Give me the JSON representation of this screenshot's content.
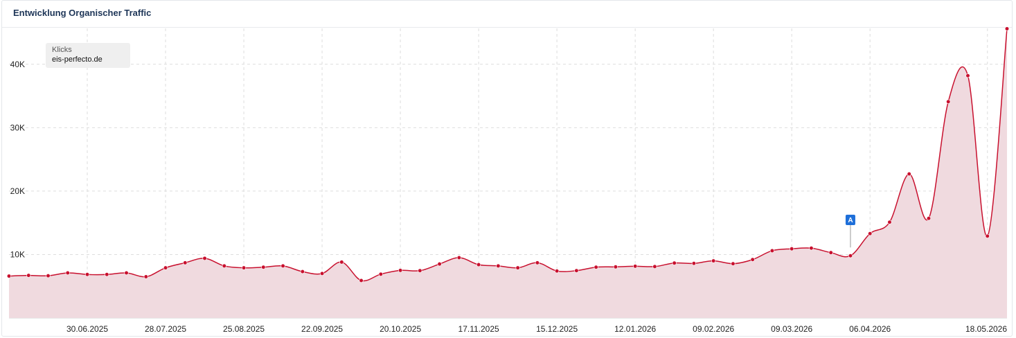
{
  "widget": {
    "title": "Entwicklung Organischer Traffic"
  },
  "legend": {
    "metric": "Klicks",
    "domain": "eis-perfecto.de"
  },
  "colors": {
    "line": "#c8102e",
    "area": "#f0dadf",
    "grid": "#dddddd",
    "marker_badge": "#1e6fd9"
  },
  "chart_data": {
    "type": "area",
    "title": "Entwicklung Organischer Traffic",
    "xlabel": "",
    "ylabel": "",
    "ylim": [
      0,
      45000
    ],
    "y_ticks": [
      {
        "value": 10000,
        "label": "10K"
      },
      {
        "value": 20000,
        "label": "20K"
      },
      {
        "value": 30000,
        "label": "30K"
      },
      {
        "value": 40000,
        "label": "40K"
      }
    ],
    "x_ticks": [
      "30.06.2025",
      "28.07.2025",
      "25.08.2025",
      "22.09.2025",
      "20.10.2025",
      "17.11.2025",
      "15.12.2025",
      "12.01.2026",
      "09.02.2026",
      "09.03.2026",
      "06.04.2026",
      "18.05.2026"
    ],
    "grid": true,
    "legend_position": "top-left",
    "series": [
      {
        "name": "Klicks",
        "x": [
          "2025-06-02",
          "2025-06-09",
          "2025-06-16",
          "2025-06-23",
          "2025-06-30",
          "2025-07-07",
          "2025-07-14",
          "2025-07-21",
          "2025-07-28",
          "2025-08-04",
          "2025-08-11",
          "2025-08-18",
          "2025-08-25",
          "2025-09-01",
          "2025-09-08",
          "2025-09-15",
          "2025-09-22",
          "2025-09-29",
          "2025-10-06",
          "2025-10-13",
          "2025-10-20",
          "2025-10-27",
          "2025-11-03",
          "2025-11-10",
          "2025-11-17",
          "2025-11-24",
          "2025-12-01",
          "2025-12-08",
          "2025-12-15",
          "2025-12-22",
          "2025-12-29",
          "2026-01-05",
          "2026-01-12",
          "2026-01-19",
          "2026-01-26",
          "2026-02-02",
          "2026-02-09",
          "2026-02-16",
          "2026-02-23",
          "2026-03-02",
          "2026-03-09",
          "2026-03-16",
          "2026-03-23",
          "2026-03-30",
          "2026-04-06",
          "2026-04-13",
          "2026-04-20",
          "2026-04-27",
          "2026-05-04",
          "2026-05-11",
          "2026-05-18",
          "2026-05-25"
        ],
        "values": [
          6600,
          6700,
          6650,
          7100,
          6850,
          6850,
          7100,
          6500,
          7900,
          8700,
          9400,
          8200,
          7900,
          8000,
          8200,
          7300,
          7000,
          8800,
          5900,
          6900,
          7500,
          7450,
          8500,
          9500,
          8400,
          8200,
          7900,
          8700,
          7400,
          7450,
          8000,
          8050,
          8150,
          8100,
          8650,
          8600,
          9000,
          8550,
          9200,
          10600,
          10900,
          11000,
          10300,
          9800,
          13300,
          15100,
          22700,
          15700,
          34100,
          38200,
          12900,
          45600
        ]
      }
    ],
    "annotations": [
      {
        "x": "2026-03-30",
        "label": "A"
      }
    ]
  }
}
